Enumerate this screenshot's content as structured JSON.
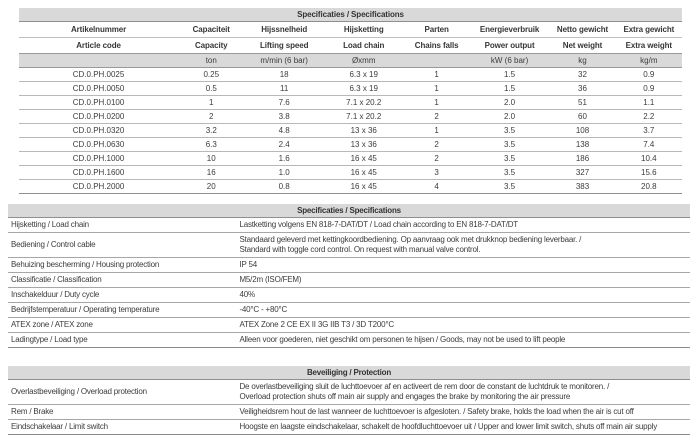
{
  "colors": {
    "header_bar_bg": "#d9d9d9",
    "text": "#3c3c3c",
    "strong_line": "#8f8f8f",
    "row_line": "#b8b8b8"
  },
  "spec_table": {
    "title": "Specificaties / Specifications",
    "columns": [
      {
        "nl": "Artikelnummer",
        "en": "Article code",
        "unit": ""
      },
      {
        "nl": "Capaciteit",
        "en": "Capacity",
        "unit": "ton"
      },
      {
        "nl": "Hijssnelheid",
        "en": "Lifting speed",
        "unit": "m/min (6 bar)"
      },
      {
        "nl": "Hijsketting",
        "en": "Load chain",
        "unit": "Øxmm"
      },
      {
        "nl": "Parten",
        "en": "Chains falls",
        "unit": ""
      },
      {
        "nl": "Energieverbruik",
        "en": "Power output",
        "unit": "kW (6 bar)"
      },
      {
        "nl": "Netto gewicht",
        "en": "Net weight",
        "unit": "kg"
      },
      {
        "nl": "Extra gewicht",
        "en": "Extra weight",
        "unit": "kg/m"
      }
    ],
    "rows": [
      [
        "CD.0.PH.0025",
        "0.25",
        "18",
        "6.3 x 19",
        "1",
        "1.5",
        "32",
        "0.9"
      ],
      [
        "CD.0.PH.0050",
        "0.5",
        "11",
        "6.3 x 19",
        "1",
        "1.5",
        "36",
        "0.9"
      ],
      [
        "CD.0.PH.0100",
        "1",
        "7.6",
        "7.1 x 20.2",
        "1",
        "2.0",
        "51",
        "1.1"
      ],
      [
        "CD.0.PH.0200",
        "2",
        "3.8",
        "7.1 x 20.2",
        "2",
        "2.0",
        "60",
        "2.2"
      ],
      [
        "CD.0.PH.0320",
        "3.2",
        "4.8",
        "13 x 36",
        "1",
        "3.5",
        "108",
        "3.7"
      ],
      [
        "CD.0.PH.0630",
        "6.3",
        "2.4",
        "13 x 36",
        "2",
        "3.5",
        "138",
        "7.4"
      ],
      [
        "CD.0.PH.1000",
        "10",
        "1.6",
        "16 x 45",
        "2",
        "3.5",
        "186",
        "10.4"
      ],
      [
        "CD.0.PH.1600",
        "16",
        "1.0",
        "16 x 45",
        "3",
        "3.5",
        "327",
        "15.6"
      ],
      [
        "CD.0.PH.2000",
        "20",
        "0.8",
        "16 x 45",
        "4",
        "3.5",
        "383",
        "20.8"
      ]
    ]
  },
  "details_table": {
    "title": "Specificaties / Specifications",
    "rows": [
      {
        "label": "Hijsketting / Load chain",
        "value": "Lastketting volgens EN 818-7-DAT/DT / Load chain according to EN 818-7-DAT/DT"
      },
      {
        "label": "Bediening / Control cable",
        "value": "Standaard geleverd met kettingkoordbediening. Op aanvraag ook met drukknop bediening leverbaar. /\nStandard with toggle cord control. On request with manual valve control."
      },
      {
        "label": "Behuizing bescherming / Housing protection",
        "value": "IP 54"
      },
      {
        "label": "Classificatie / Classification",
        "value": "M5/2m (ISO/FEM)"
      },
      {
        "label": "Inschakelduur / Duty cycle",
        "value": "40%"
      },
      {
        "label": "Bedrijfstemperatuur / Operating temperature",
        "value": "-40°C - +80°C"
      },
      {
        "label": "ATEX zone / ATEX zone",
        "value": "ATEX Zone 2 CE EX II 3G IIB T3 / 3D T200°C"
      },
      {
        "label": "Ladingtype / Load type",
        "value": "Alleen voor goederen, niet geschikt om personen te hijsen / Goods, may not be used to lift people"
      }
    ]
  },
  "protection_table": {
    "title": "Beveiliging / Protection",
    "rows": [
      {
        "label": "Overlastbeveiliging / Overload protection",
        "value": "De overlastbeveiliging sluit de luchttoevoer af en activeert de rem door de constant de luchtdruk te monitoren. /\nOverload protection shuts off main air supply and engages the brake by monitoring the air pressure"
      },
      {
        "label": "Rem / Brake",
        "value": "Veiligheidsrem hout de last wanneer de luchttoevoer is afgesloten. / Safety brake, holds the load when the air is cut off"
      },
      {
        "label": "Eindschakelaar / Limit switch",
        "value": "Hoogste en laagste eindschakelaar, schakelt de hoofdluchttoevoer uit / Upper and lower limit switch, shuts off main air supply"
      }
    ]
  }
}
